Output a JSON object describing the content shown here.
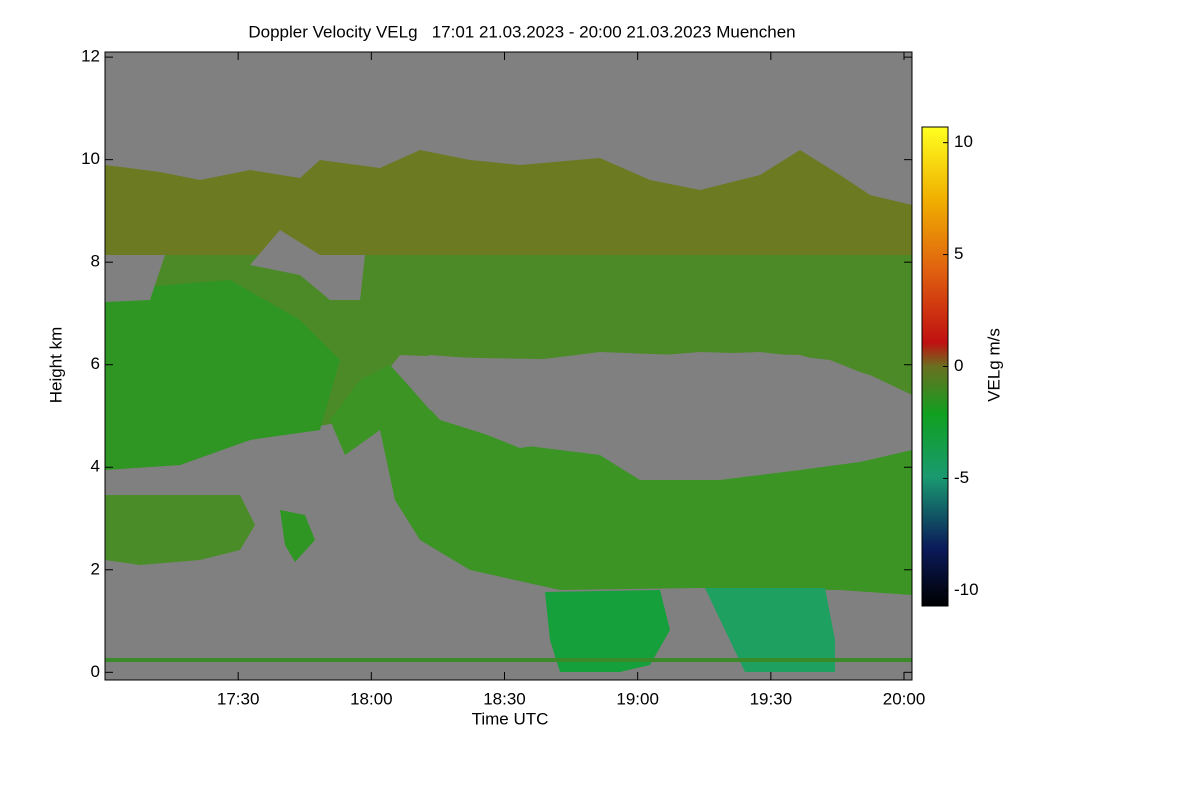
{
  "chart_data": {
    "type": "heatmap",
    "title": "Doppler Velocity VELg   17:01 21.03.2023 - 20:00 21.03.2023 Muenchen",
    "xlabel": "Time UTC",
    "ylabel": "Height km",
    "colorbar_label": "VELg m/s",
    "xlim": [
      17.0,
      20.03
    ],
    "xticks": [
      {
        "value": 17.5,
        "label": "17:30"
      },
      {
        "value": 18.0,
        "label": "18:00"
      },
      {
        "value": 18.5,
        "label": "18:30"
      },
      {
        "value": 19.0,
        "label": "19:00"
      },
      {
        "value": 19.5,
        "label": "19:30"
      },
      {
        "value": 20.0,
        "label": "20:00"
      }
    ],
    "ylim": [
      -0.15,
      12.1
    ],
    "yticks": [
      0,
      2,
      4,
      6,
      8,
      10,
      12
    ],
    "clim": [
      -10.7,
      10.7
    ],
    "cticks": [
      -10,
      -5,
      0,
      5,
      10
    ]
  }
}
